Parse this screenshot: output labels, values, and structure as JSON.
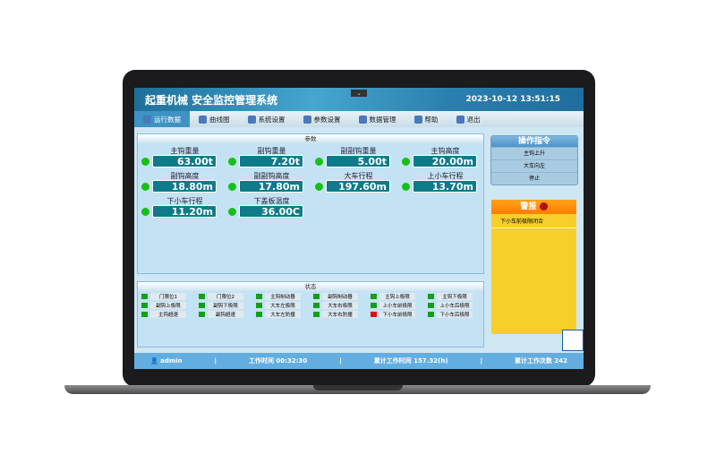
{
  "header": {
    "title": "起重机械 安全监控管理系统",
    "datetime": "2023-10-12 13:51:15"
  },
  "nav": [
    {
      "label": "运行数据",
      "active": true
    },
    {
      "label": "曲线图"
    },
    {
      "label": "系统设置"
    },
    {
      "label": "参数设置"
    },
    {
      "label": "数据管理"
    },
    {
      "label": "帮助"
    },
    {
      "label": "退出"
    }
  ],
  "params": {
    "title": "参数",
    "items": [
      {
        "label": "主钩重量",
        "value": "63.00t"
      },
      {
        "label": "副钩重量",
        "value": "7.20t"
      },
      {
        "label": "副副钩重量",
        "value": "5.00t"
      },
      {
        "label": "主钩高度",
        "value": "20.00m"
      },
      {
        "label": "副钩高度",
        "value": "18.80m"
      },
      {
        "label": "副副钩高度",
        "value": "17.80m"
      },
      {
        "label": "大车行程",
        "value": "197.60m"
      },
      {
        "label": "上小车行程",
        "value": "13.70m"
      },
      {
        "label": "下小车行程",
        "value": "11.20m"
      },
      {
        "label": "下盖板温度",
        "value": "36.00C"
      }
    ]
  },
  "status": {
    "title": "状态",
    "items": [
      {
        "label": "门限位1",
        "state": "ok"
      },
      {
        "label": "门限位2",
        "state": "ok"
      },
      {
        "label": "主钩制动器",
        "state": "ok"
      },
      {
        "label": "副钩制动器",
        "state": "ok"
      },
      {
        "label": "主钩上极限",
        "state": "ok"
      },
      {
        "label": "主钩下极限",
        "state": "ok"
      },
      {
        "label": "副钩上极限",
        "state": "ok"
      },
      {
        "label": "副钩下极限",
        "state": "ok"
      },
      {
        "label": "大车左极限",
        "state": "ok"
      },
      {
        "label": "大车右极限",
        "state": "ok"
      },
      {
        "label": "上小车前极限",
        "state": "ok"
      },
      {
        "label": "上小车后极限",
        "state": "ok"
      },
      {
        "label": "主钩超速",
        "state": "ok"
      },
      {
        "label": "副钩超速",
        "state": "ok"
      },
      {
        "label": "大车左防撞",
        "state": "ok"
      },
      {
        "label": "大车右防撞",
        "state": "ok"
      },
      {
        "label": "下小车前极限",
        "state": "alarm"
      },
      {
        "label": "下小车后极限",
        "state": "ok"
      }
    ]
  },
  "colors": {
    "ok": "#13a013",
    "alarm": "#e01010"
  },
  "commands": {
    "title": "操作指令",
    "items": [
      "主钩上升",
      "大车向左",
      "停止"
    ]
  },
  "alarm": {
    "title": "警报",
    "items": [
      "下小车前极限闭合"
    ]
  },
  "footer": {
    "user": "admin",
    "work_time_label": "工作时间",
    "work_time": "00:32:30",
    "total_time_label": "累计工作时间",
    "total_time": "157.32(h)",
    "count_label": "累计工作次数",
    "count": "242"
  }
}
